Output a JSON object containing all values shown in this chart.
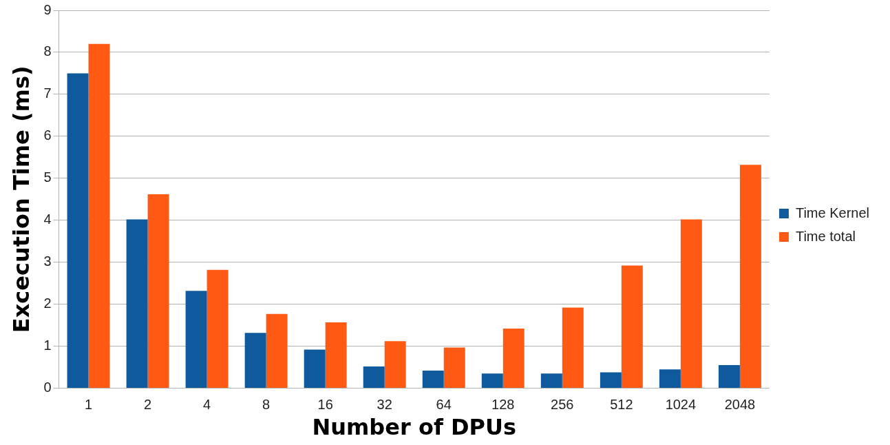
{
  "chart_data": {
    "type": "bar",
    "xlabel": "Number of DPUs",
    "ylabel": "Excecution Time (ms)",
    "categories": [
      "1",
      "2",
      "4",
      "8",
      "16",
      "32",
      "64",
      "128",
      "256",
      "512",
      "1024",
      "2048"
    ],
    "series": [
      {
        "name": "Time Kernel",
        "color": "#0f5a9c",
        "values": [
          7.5,
          4.02,
          2.32,
          1.32,
          0.92,
          0.52,
          0.42,
          0.35,
          0.35,
          0.38,
          0.45,
          0.55
        ]
      },
      {
        "name": "Time total",
        "color": "#ff5a14",
        "values": [
          8.2,
          4.62,
          2.82,
          1.77,
          1.57,
          1.12,
          0.97,
          1.42,
          1.92,
          2.92,
          4.02,
          5.32
        ]
      }
    ],
    "ylim": [
      0,
      9
    ],
    "yticks": [
      0,
      1,
      2,
      3,
      4,
      5,
      6,
      7,
      8,
      9
    ],
    "grid": "y",
    "legend": "right"
  }
}
